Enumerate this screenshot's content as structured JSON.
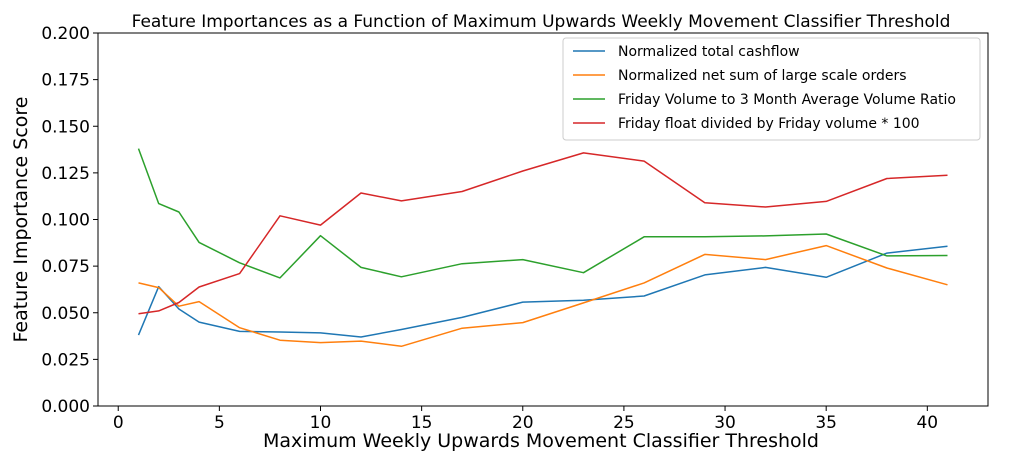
{
  "chart_data": {
    "type": "line",
    "title": "Feature Importances as a Function of Maximum Upwards Weekly Movement Classifier Threshold",
    "xlabel": "Maximum Weekly Upwards Movement Classifier Threshold",
    "ylabel": "Feature Importance Score",
    "xlim": [
      -1,
      43
    ],
    "ylim": [
      0,
      0.2
    ],
    "xticks": [
      0,
      5,
      10,
      15,
      20,
      25,
      30,
      35,
      40
    ],
    "xtick_labels": [
      "0",
      "5",
      "10",
      "15",
      "20",
      "25",
      "30",
      "35",
      "40"
    ],
    "yticks": [
      0,
      0.025,
      0.05,
      0.075,
      0.1,
      0.125,
      0.15,
      0.175,
      0.2
    ],
    "ytick_labels": [
      "0.000",
      "0.025",
      "0.050",
      "0.075",
      "0.100",
      "0.125",
      "0.150",
      "0.175",
      "0.200"
    ],
    "grid": false,
    "legend_position": "top-right",
    "x": [
      1,
      2,
      3,
      4,
      6,
      8,
      10,
      12,
      14,
      17,
      20,
      23,
      26,
      29,
      32,
      35,
      38,
      41
    ],
    "series": [
      {
        "name": "Normalized total cashflow",
        "color": "#1f77b4",
        "values": [
          0.038,
          0.064,
          0.052,
          0.045,
          0.04,
          0.0397,
          0.0392,
          0.037,
          0.041,
          0.0475,
          0.0557,
          0.0567,
          0.059,
          0.0703,
          0.0743,
          0.069,
          0.082,
          0.0857
        ]
      },
      {
        "name": "Normalized net sum of large scale orders",
        "color": "#ff7f0e",
        "values": [
          0.066,
          0.0635,
          0.0535,
          0.056,
          0.042,
          0.0353,
          0.034,
          0.0348,
          0.032,
          0.0417,
          0.0447,
          0.0553,
          0.066,
          0.0813,
          0.0785,
          0.086,
          0.074,
          0.065
        ]
      },
      {
        "name": "Friday Volume to 3 Month Average Volume Ratio",
        "color": "#2ca02c",
        "values": [
          0.138,
          0.1085,
          0.104,
          0.0877,
          0.0768,
          0.0687,
          0.0913,
          0.0743,
          0.0693,
          0.0763,
          0.0785,
          0.0715,
          0.0907,
          0.0907,
          0.0912,
          0.0922,
          0.0805,
          0.0807
        ]
      },
      {
        "name": "Friday float divided by Friday volume * 100",
        "color": "#d62728",
        "values": [
          0.0495,
          0.051,
          0.0555,
          0.0638,
          0.071,
          0.102,
          0.097,
          0.1142,
          0.11,
          0.115,
          0.126,
          0.1357,
          0.1313,
          0.109,
          0.1067,
          0.1097,
          0.122,
          0.1237
        ]
      }
    ]
  }
}
